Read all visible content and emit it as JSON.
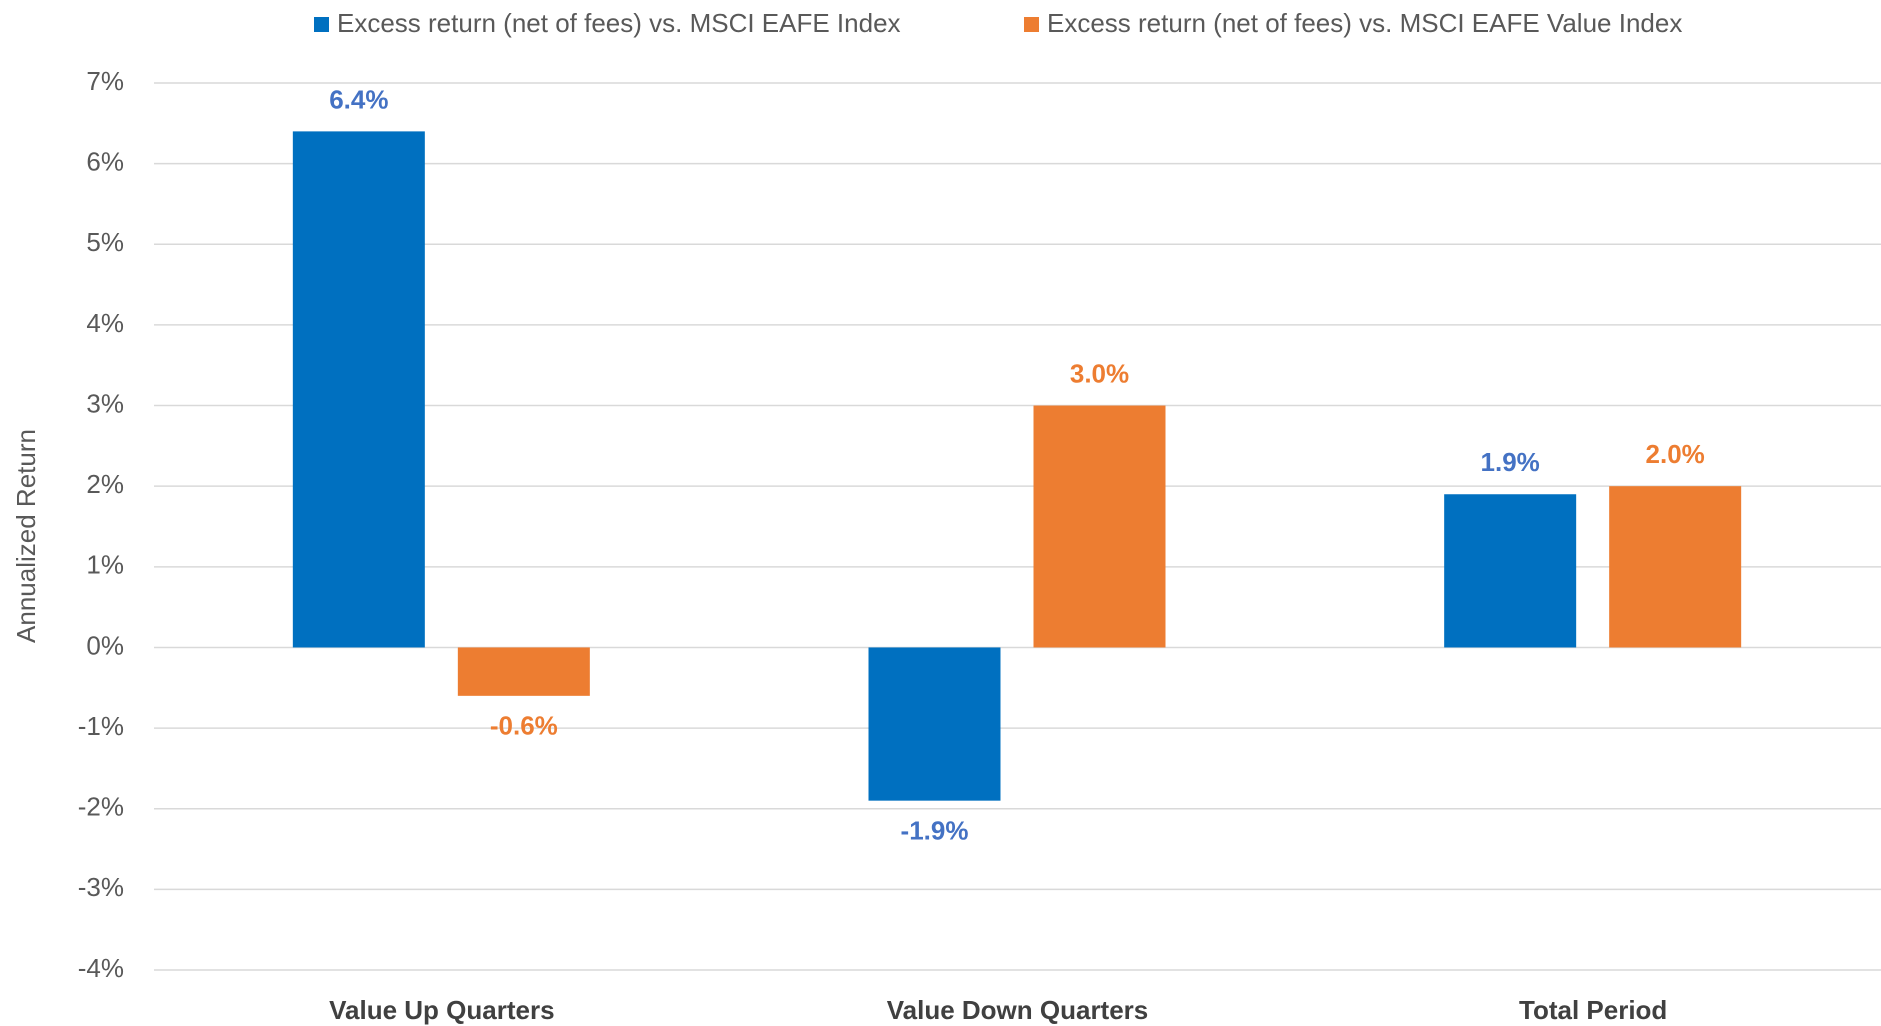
{
  "chart_data": {
    "type": "bar",
    "y_axis_label": "Annualized Return",
    "categories": [
      "Value Up Quarters",
      "Value Down Quarters",
      "Total Period"
    ],
    "series": [
      {
        "name": "Excess return (net of fees) vs. MSCI EAFE Index",
        "color": "#0070c0",
        "label_color": "#4472c4",
        "values": [
          6.4,
          -1.9,
          1.9
        ],
        "value_labels": [
          "6.4%",
          "-1.9%",
          "1.9%"
        ]
      },
      {
        "name": "Excess return (net of fees) vs. MSCI EAFE Value Index",
        "color": "#ed7d31",
        "label_color": "#ed7d31",
        "values": [
          -0.6,
          3.0,
          2.0
        ],
        "value_labels": [
          "-0.6%",
          "3.0%",
          "2.0%"
        ]
      }
    ],
    "ylim": [
      -4,
      7
    ],
    "yticks": [
      {
        "value": -4,
        "label": "-4%"
      },
      {
        "value": -3,
        "label": "-3%"
      },
      {
        "value": -2,
        "label": "-2%"
      },
      {
        "value": -1,
        "label": "-1%"
      },
      {
        "value": 0,
        "label": "0%"
      },
      {
        "value": 1,
        "label": "1%"
      },
      {
        "value": 2,
        "label": "2%"
      },
      {
        "value": 3,
        "label": "3%"
      },
      {
        "value": 4,
        "label": "4%"
      },
      {
        "value": 5,
        "label": "5%"
      },
      {
        "value": 6,
        "label": "6%"
      },
      {
        "value": 7,
        "label": "7%"
      }
    ],
    "grid": true,
    "legend": "top"
  }
}
